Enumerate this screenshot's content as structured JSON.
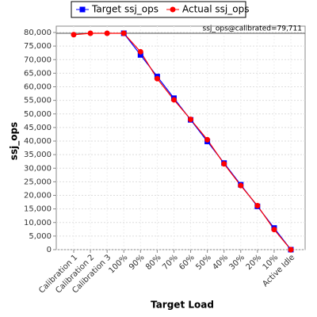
{
  "chart_data": {
    "type": "line",
    "x_label": "Target Load",
    "y_label": "ssj_ops",
    "categories": [
      "Calibration 1",
      "Calibration 2",
      "Calibration 3",
      "100%",
      "90%",
      "80%",
      "70%",
      "60%",
      "50%",
      "40%",
      "30%",
      "20%",
      "10%",
      "Active Idle"
    ],
    "series": [
      {
        "name": "Target ssj_ops",
        "color": "#0000ff",
        "marker": "square",
        "values": [
          null,
          null,
          null,
          79711,
          71740,
          63769,
          55798,
          47827,
          39856,
          31884,
          23913,
          15942,
          7971,
          0
        ]
      },
      {
        "name": "Actual ssj_ops",
        "color": "#ff0000",
        "marker": "circle",
        "values": [
          79200,
          79700,
          79700,
          79700,
          72900,
          63000,
          55200,
          48000,
          40500,
          31600,
          23600,
          16200,
          7400,
          0
        ]
      }
    ],
    "reference_line": {
      "value": 79711,
      "label": "ssj_ops@calibrated=79,711"
    },
    "ylim": [
      0,
      80000
    ],
    "yticks": [
      0,
      {
        "value": 5000,
        "label": "5,000"
      },
      {
        "value": 10000,
        "label": "10,000"
      },
      {
        "value": 15000,
        "label": "15,000"
      },
      {
        "value": 20000,
        "label": "20,000"
      },
      {
        "value": 25000,
        "label": "25,000"
      },
      {
        "value": 30000,
        "label": "30,000"
      },
      {
        "value": 35000,
        "label": "35,000"
      },
      {
        "value": 40000,
        "label": "40,000"
      },
      {
        "value": 45000,
        "label": "45,000"
      },
      {
        "value": 50000,
        "label": "50,000"
      },
      {
        "value": 55000,
        "label": "55,000"
      },
      {
        "value": 60000,
        "label": "60,000"
      },
      {
        "value": 65000,
        "label": "65,000"
      },
      {
        "value": 70000,
        "label": "70,000"
      },
      {
        "value": 75000,
        "label": "75,000"
      },
      {
        "value": {
          "value": 80000
        },
        "label": "80,000"
      }
    ],
    "grid": true,
    "legend": "top"
  }
}
